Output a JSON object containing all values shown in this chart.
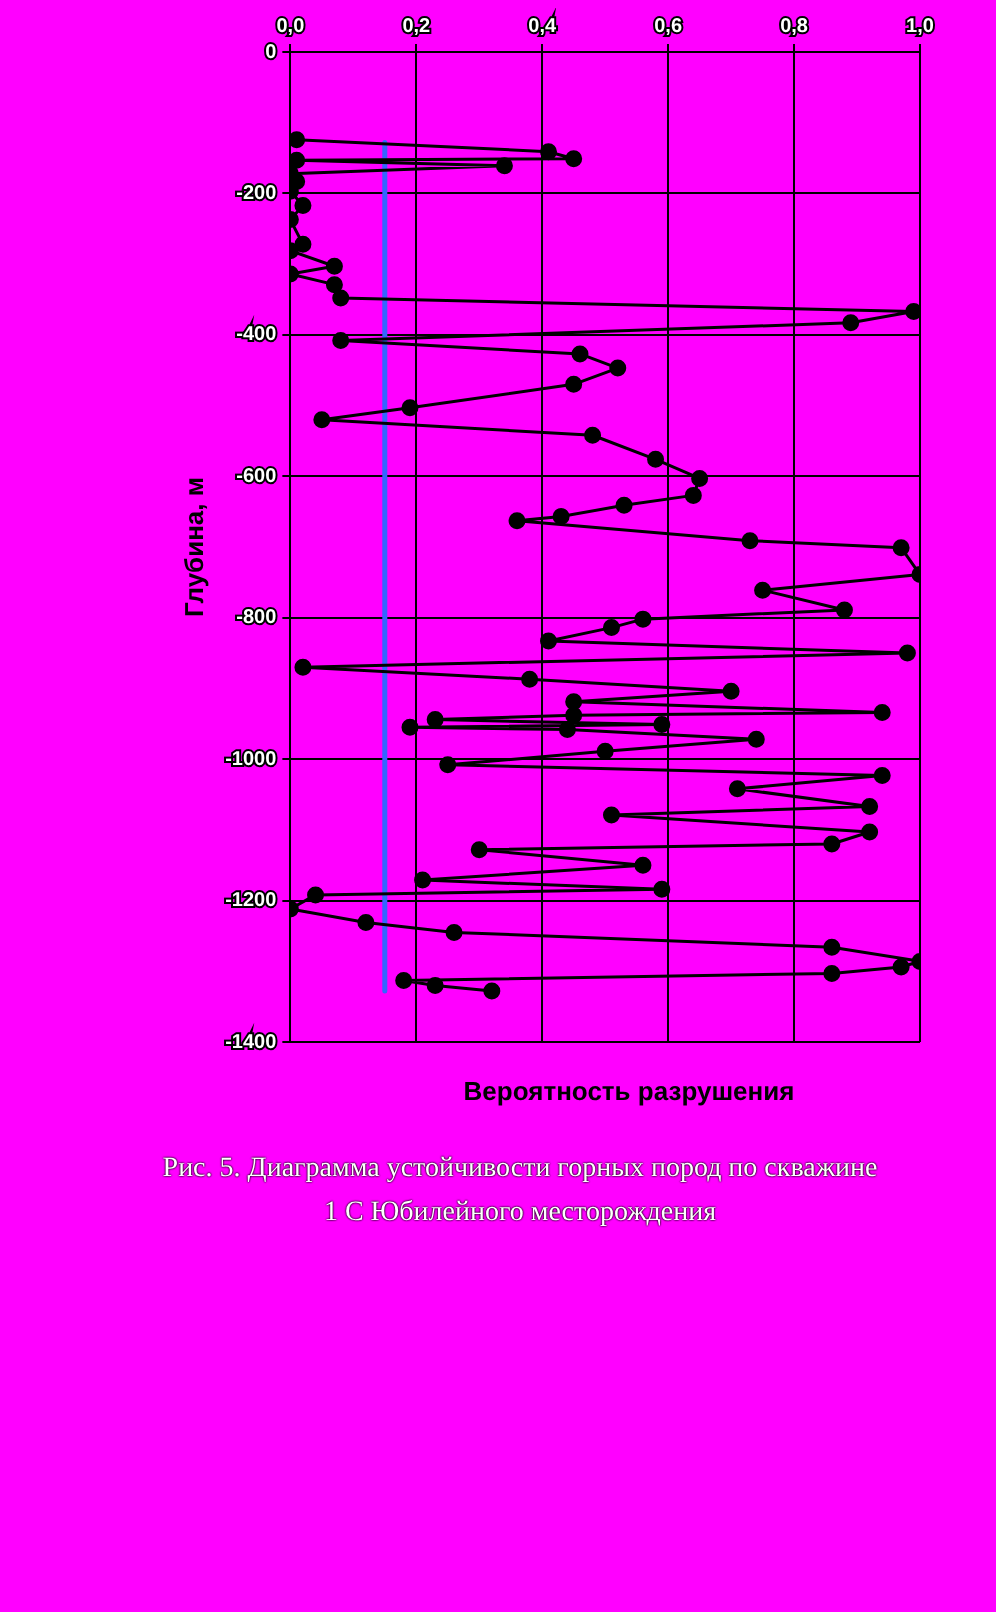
{
  "chart_data": {
    "type": "line",
    "xlabel": "Вероятность разрушения",
    "ylabel": "Глубина, м",
    "annotations": [
      "Рис. 5. Диаграмма устойчивости горных пород по скважине 1 С Юбилейного месторождения"
    ],
    "xlim": [
      0,
      1
    ],
    "xticks": [
      {
        "value": 0,
        "label": "0,0"
      },
      {
        "value": 0.2,
        "label": "0,2"
      },
      {
        "value": 0.4,
        "label": "0,4"
      },
      {
        "value": 0.6,
        "label": "0,6"
      },
      {
        "value": 0.8,
        "label": "0,8"
      },
      {
        "value": 1,
        "label": "1,0"
      }
    ],
    "ylim": [
      -1400,
      0
    ],
    "yticks": [
      -1400,
      -1200,
      -1000,
      -800,
      -600,
      -400,
      -200,
      0
    ],
    "grid": true,
    "marker": "circle",
    "line_style": "solid",
    "series": [
      {
        "color": "#000000",
        "x": [
          0.01,
          0.41,
          0.45,
          0.01,
          0.34,
          0.0,
          0.01,
          0.0,
          0.02,
          0.0,
          0.02,
          0.0,
          0.07,
          0.0,
          0.07,
          0.08,
          0.99,
          0.89,
          0.08,
          0.46,
          0.52,
          0.45,
          0.19,
          0.05,
          0.48,
          0.58,
          0.65,
          0.64,
          0.53,
          0.43,
          0.36,
          0.73,
          0.97,
          1.0,
          0.75,
          0.88,
          0.56,
          0.51,
          0.41,
          0.98,
          0.02,
          0.38,
          0.7,
          0.45,
          0.94,
          0.45,
          0.23,
          0.59,
          0.19,
          0.44,
          0.74,
          0.5,
          0.25,
          0.94,
          0.71,
          0.92,
          0.51,
          0.92,
          0.86,
          0.3,
          0.56,
          0.21,
          0.59,
          0.04,
          0.0,
          0.12,
          0.26,
          0.86,
          1.0,
          0.97,
          0.86,
          0.18,
          0.23,
          0.32
        ],
        "values": [
          -124,
          -141,
          -151,
          -153,
          -161,
          -172,
          -183,
          -197,
          -217,
          -237,
          -272,
          -281,
          -303,
          -314,
          -329,
          -348,
          -367,
          -383,
          -408,
          -427,
          -447,
          -470,
          -503,
          -520,
          -542,
          -576,
          -603,
          -627,
          -641,
          -657,
          -663,
          -691,
          -701,
          -739,
          -761,
          -789,
          -802,
          -814,
          -833,
          -850,
          -870,
          -887,
          -904,
          -919,
          -934,
          -938,
          -944,
          -951,
          -955,
          -958,
          -972,
          -989,
          -1008,
          -1023,
          -1042,
          -1067,
          -1079,
          -1103,
          -1120,
          -1128,
          -1150,
          -1171,
          -1184,
          -1192,
          -1212,
          -1231,
          -1245,
          -1266,
          -1286,
          -1294,
          -1303,
          -1313,
          -1320,
          -1328
        ]
      },
      {
        "type": "line",
        "color": "#3366ff",
        "marker": "none",
        "x": [
          0.15,
          0.15
        ],
        "values": [
          -128,
          -1328
        ]
      }
    ]
  }
}
